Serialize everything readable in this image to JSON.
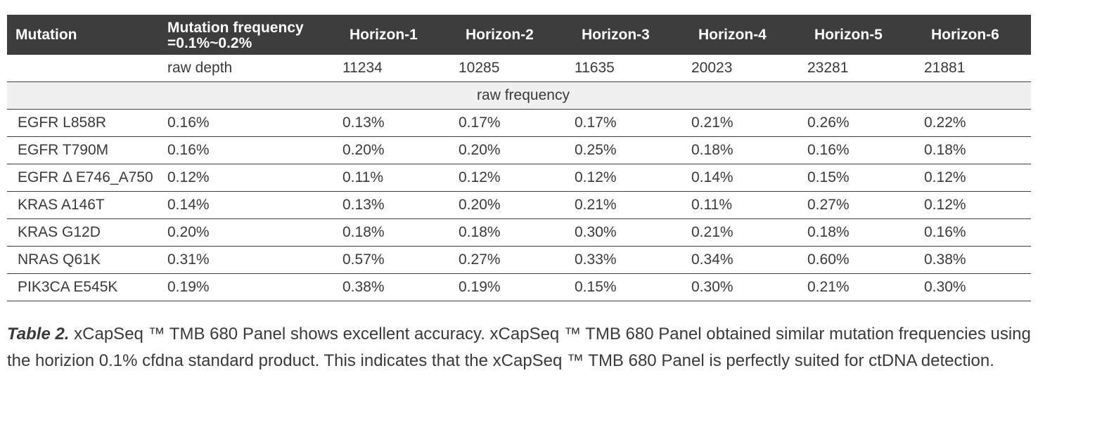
{
  "table": {
    "headers": [
      "Mutation",
      "Mutation  frequency =0.1%~0.2%",
      "Horizon-1",
      "Horizon-2",
      "Horizon-3",
      "Horizon-4",
      "Horizon-5",
      "Horizon-6"
    ],
    "depth_row": [
      "",
      "raw depth",
      "11234",
      "10285",
      "11635",
      "20023",
      "23281",
      "21881"
    ],
    "section_label": "raw frequency",
    "rows": [
      [
        "EGFR L858R",
        "0.16%",
        "0.13%",
        "0.17%",
        "0.17%",
        "0.21%",
        "0.26%",
        "0.22%"
      ],
      [
        "EGFR T790M",
        "0.16%",
        "0.20%",
        "0.20%",
        "0.25%",
        "0.18%",
        "0.16%",
        "0.18%"
      ],
      [
        "EGFR Δ E746_A750",
        "0.12%",
        "0.11%",
        "0.12%",
        "0.12%",
        "0.14%",
        "0.15%",
        "0.12%"
      ],
      [
        "KRAS A146T",
        "0.14%",
        "0.13%",
        "0.20%",
        "0.21%",
        "0.11%",
        "0.27%",
        "0.12%"
      ],
      [
        "KRAS G12D",
        "0.20%",
        "0.18%",
        "0.18%",
        "0.30%",
        "0.21%",
        "0.18%",
        "0.16%"
      ],
      [
        "NRAS Q61K",
        "0.31%",
        "0.57%",
        "0.27%",
        "0.33%",
        "0.34%",
        "0.60%",
        "0.38%"
      ],
      [
        "PIK3CA E545K",
        "0.19%",
        "0.38%",
        "0.19%",
        "0.15%",
        "0.30%",
        "0.21%",
        "0.30%"
      ]
    ]
  },
  "caption": {
    "label": "Table 2.",
    "text": " xCapSeq ™ TMB 680 Panel shows excellent accuracy. xCapSeq ™ TMB 680 Panel obtained similar mutation frequencies using the horizion 0.1% cfdna standard product. This indicates that the xCapSeq ™ TMB 680 Panel is perfectly suited for ctDNA detection."
  }
}
